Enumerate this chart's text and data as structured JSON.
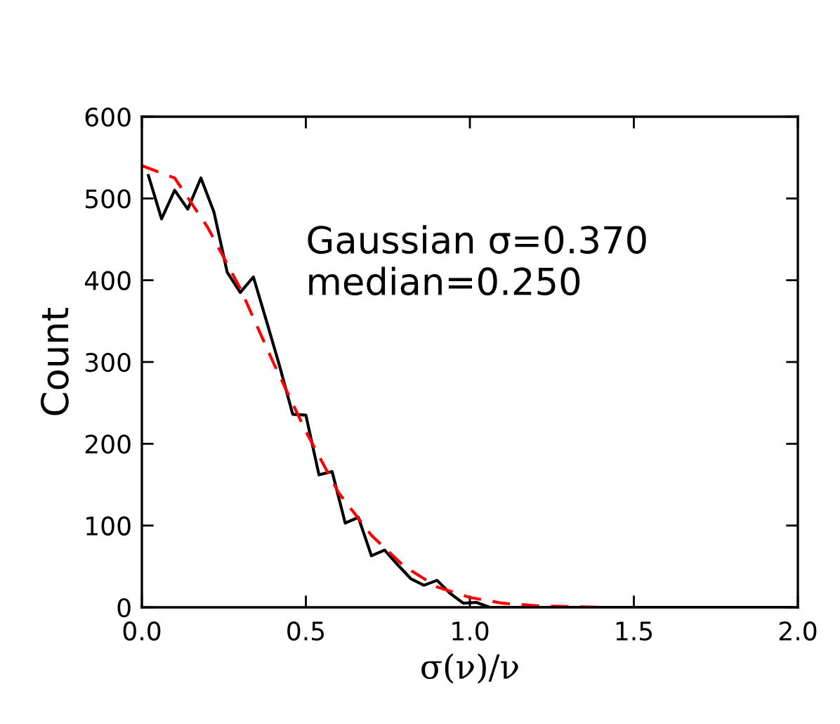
{
  "chart_data": {
    "type": "line",
    "xlabel": "σ(ν)/ν",
    "ylabel": "Count",
    "annotations": [
      "Gaussian σ=0.370\nmedian=0.250"
    ],
    "series": [
      {
        "color": "#000000",
        "line_style": "solid",
        "x": [
          0.02,
          0.06,
          0.1,
          0.14,
          0.18,
          0.22,
          0.26,
          0.3,
          0.34,
          0.38,
          0.42,
          0.46,
          0.5,
          0.54,
          0.58,
          0.62,
          0.66,
          0.7,
          0.74,
          0.78,
          0.82,
          0.86,
          0.9,
          0.94,
          0.98,
          1.02,
          1.06,
          1.1,
          1.3,
          1.5,
          1.7,
          1.9,
          1.98
        ],
        "values": [
          528,
          475,
          510,
          487,
          525,
          483,
          410,
          385,
          404,
          350,
          295,
          236,
          235,
          162,
          166,
          103,
          110,
          63,
          70,
          52,
          35,
          27,
          33,
          17,
          5,
          6,
          0,
          0,
          0,
          0,
          0,
          0,
          0
        ]
      },
      {
        "color": "#ff0000",
        "line_style": "dashed",
        "x": [
          0.0,
          0.1,
          0.2,
          0.3,
          0.4,
          0.5,
          0.6,
          0.7,
          0.8,
          0.9,
          1.0,
          1.1,
          1.2,
          1.4
        ],
        "values": [
          540,
          525,
          465,
          390,
          300,
          215,
          140,
          88,
          50,
          25,
          12,
          5,
          2,
          0
        ]
      }
    ],
    "xlim": [
      0.0,
      2.0
    ],
    "ylim": [
      0,
      600
    ],
    "xticks": [
      {
        "value": 0,
        "label": "0.0"
      },
      0.5,
      {
        "value": 1,
        "label": "1.0"
      },
      1.5,
      {
        "value": 2,
        "label": "2.0"
      }
    ],
    "yticks": [
      0,
      100,
      200,
      300,
      400,
      500,
      600
    ],
    "grid": false,
    "legend": false,
    "marker": "none"
  }
}
